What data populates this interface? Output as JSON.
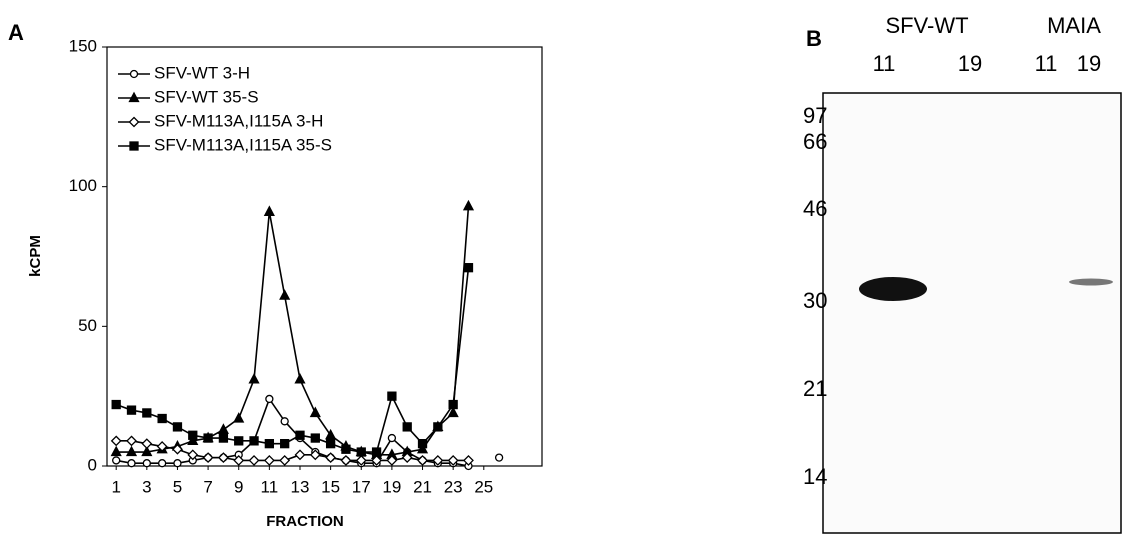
{
  "chart_data": {
    "type": "line",
    "panel": "A",
    "x_label": "FRACTION",
    "y_label": "kCPM",
    "x": [
      1,
      2,
      3,
      4,
      5,
      6,
      7,
      8,
      9,
      10,
      11,
      12,
      13,
      14,
      15,
      16,
      17,
      18,
      19,
      20,
      21,
      22,
      23,
      24,
      25,
      26
    ],
    "xlim": [
      0.4,
      28.8
    ],
    "xticks": [
      1,
      3,
      5,
      7,
      9,
      11,
      13,
      15,
      17,
      19,
      21,
      23,
      25
    ],
    "ylim": [
      0,
      150
    ],
    "yticks": [
      0,
      50,
      100,
      150
    ],
    "legend": "top-left",
    "series": [
      {
        "name": "SFV-WT 3-H",
        "color": "#000000",
        "marker": "circle-open",
        "values": [
          2,
          1,
          1,
          1,
          1,
          2,
          3,
          3,
          4,
          9,
          24,
          16,
          10,
          5,
          3,
          2,
          1,
          1,
          10,
          5,
          2,
          1,
          1,
          0,
          null,
          3
        ]
      },
      {
        "name": "SFV-WT 35-S",
        "color": "#000000",
        "marker": "triangle",
        "values": [
          5,
          5,
          5,
          6,
          7,
          9,
          10,
          13,
          17,
          31,
          91,
          61,
          31,
          19,
          11,
          7,
          5,
          4,
          4,
          5,
          6,
          14,
          19,
          93,
          null,
          null
        ]
      },
      {
        "name": "SFV-M113A,I115A 3-H",
        "color": "#000000",
        "marker": "diamond-open",
        "values": [
          9,
          9,
          8,
          7,
          6,
          4,
          3,
          3,
          2,
          2,
          2,
          2,
          4,
          4,
          3,
          2,
          2,
          2,
          2,
          3,
          2,
          2,
          2,
          2,
          null,
          null
        ]
      },
      {
        "name": "SFV-M113A,I115A 35-S",
        "color": "#000000",
        "marker": "square",
        "values": [
          22,
          20,
          19,
          17,
          14,
          11,
          10,
          10,
          9,
          9,
          8,
          8,
          11,
          10,
          8,
          6,
          5,
          5,
          25,
          14,
          8,
          14,
          22,
          71,
          null,
          null
        ]
      }
    ]
  },
  "gel": {
    "panel": "B",
    "groups": [
      "SFV-WT",
      "MAIA"
    ],
    "lanes": [
      "11",
      "19",
      "11",
      "19"
    ],
    "markers": [
      "97",
      "66",
      "46",
      "30",
      "21",
      "14"
    ]
  }
}
